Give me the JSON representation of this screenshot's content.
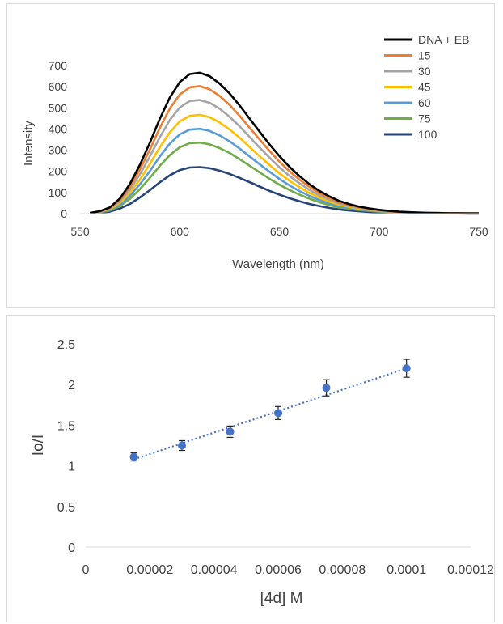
{
  "charts": [
    {
      "type": "line",
      "xlabel": "Wavelength (nm)",
      "ylabel": "Intensity",
      "xlim": [
        550,
        750
      ],
      "ylim": [
        0,
        700
      ],
      "xticks": [
        550,
        600,
        650,
        700,
        750
      ],
      "yticks": [
        0,
        100,
        200,
        300,
        400,
        500,
        600,
        700
      ],
      "grid": false,
      "legend_position": "top-right",
      "x": [
        555,
        560,
        565,
        570,
        575,
        580,
        585,
        590,
        595,
        600,
        605,
        610,
        615,
        620,
        625,
        630,
        635,
        640,
        645,
        650,
        655,
        660,
        665,
        670,
        675,
        680,
        685,
        690,
        695,
        700,
        705,
        710,
        715,
        720,
        725,
        730,
        735,
        740,
        745,
        750
      ],
      "series": [
        {
          "name": "DNA + EB",
          "color": "#000000",
          "values": [
            3,
            12,
            30,
            72,
            140,
            230,
            335,
            448,
            548,
            622,
            660,
            666,
            650,
            615,
            568,
            512,
            450,
            388,
            328,
            272,
            222,
            178,
            140,
            108,
            82,
            60,
            45,
            33,
            25,
            18,
            13,
            9,
            7,
            5,
            4,
            3,
            2,
            2,
            1,
            1
          ]
        },
        {
          "name": "15",
          "color": "#ED7D31",
          "values": [
            3,
            11,
            27,
            65,
            127,
            208,
            303,
            405,
            496,
            563,
            597,
            603,
            588,
            557,
            514,
            463,
            407,
            351,
            297,
            246,
            201,
            161,
            127,
            98,
            74,
            54,
            41,
            30,
            23,
            16,
            12,
            8,
            6,
            5,
            4,
            3,
            2,
            2,
            1,
            1
          ]
        },
        {
          "name": "30",
          "color": "#A5A5A5",
          "values": [
            3,
            10,
            24,
            58,
            113,
            185,
            270,
            361,
            442,
            502,
            532,
            537,
            524,
            496,
            458,
            413,
            363,
            313,
            265,
            219,
            179,
            144,
            113,
            87,
            66,
            48,
            36,
            27,
            20,
            15,
            10,
            7,
            6,
            4,
            3,
            2,
            2,
            1,
            1,
            1
          ]
        },
        {
          "name": "45",
          "color": "#FFC000",
          "values": [
            2,
            9,
            21,
            51,
            98,
            161,
            235,
            314,
            384,
            436,
            462,
            467,
            456,
            431,
            398,
            359,
            315,
            272,
            230,
            191,
            156,
            125,
            98,
            76,
            57,
            42,
            32,
            23,
            18,
            13,
            9,
            6,
            5,
            4,
            3,
            2,
            1,
            1,
            1,
            1
          ]
        },
        {
          "name": "60",
          "color": "#5B9BD5",
          "values": [
            2,
            7,
            18,
            43,
            84,
            138,
            201,
            270,
            330,
            375,
            397,
            401,
            391,
            370,
            342,
            308,
            271,
            234,
            198,
            164,
            134,
            107,
            84,
            65,
            49,
            36,
            27,
            20,
            15,
            11,
            8,
            5,
            4,
            3,
            2,
            2,
            1,
            1,
            1,
            1
          ]
        },
        {
          "name": "75",
          "color": "#70AD47",
          "values": [
            2,
            6,
            15,
            36,
            70,
            115,
            169,
            226,
            276,
            314,
            333,
            336,
            328,
            310,
            287,
            258,
            227,
            196,
            165,
            137,
            112,
            90,
            71,
            54,
            41,
            30,
            23,
            17,
            13,
            9,
            7,
            5,
            4,
            3,
            2,
            2,
            1,
            1,
            1,
            1
          ]
        },
        {
          "name": "100",
          "color": "#264478",
          "values": [
            1,
            4,
            10,
            24,
            46,
            76,
            111,
            148,
            181,
            206,
            218,
            220,
            215,
            203,
            188,
            169,
            149,
            128,
            108,
            90,
            73,
            59,
            46,
            36,
            27,
            20,
            15,
            11,
            8,
            6,
            4,
            3,
            2,
            2,
            1,
            1,
            1,
            1,
            0,
            0
          ]
        }
      ]
    },
    {
      "type": "scatter",
      "xlabel": "[4d] M",
      "ylabel": "Io/I",
      "xlim": [
        0,
        0.00012
      ],
      "ylim": [
        0,
        2.5
      ],
      "xticks": [
        "0",
        "0.00002",
        "0.00004",
        "0.00006",
        "0.00008",
        "0.0001",
        "0.00012"
      ],
      "yticks": [
        "0",
        "0.5",
        "1",
        "1.5",
        "2",
        "2.5"
      ],
      "grid": false,
      "marker_color": "#4472C4",
      "trendline": {
        "style": "dotted",
        "color": "#4472C4",
        "x": [
          1.5e-05,
          0.0001
        ],
        "y": [
          1.08,
          2.2
        ]
      },
      "points": [
        {
          "x": 1.5e-05,
          "y": 1.11,
          "err": 0.05
        },
        {
          "x": 3e-05,
          "y": 1.25,
          "err": 0.06
        },
        {
          "x": 4.5e-05,
          "y": 1.42,
          "err": 0.07
        },
        {
          "x": 6e-05,
          "y": 1.65,
          "err": 0.08
        },
        {
          "x": 7.5e-05,
          "y": 1.96,
          "err": 0.1
        },
        {
          "x": 0.0001,
          "y": 2.2,
          "err": 0.11
        }
      ]
    }
  ]
}
